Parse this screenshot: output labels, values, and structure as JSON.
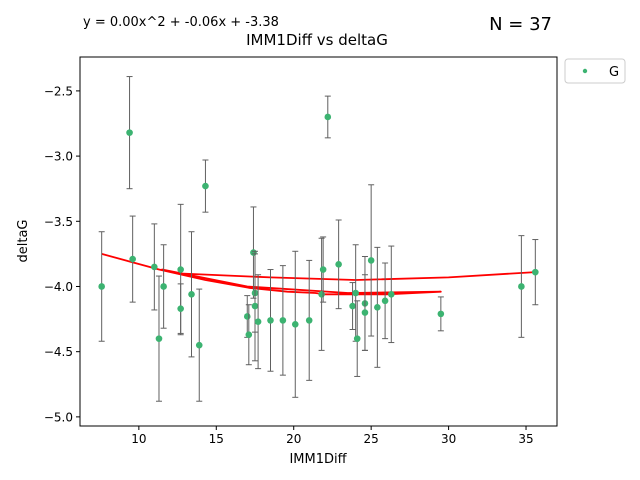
{
  "figure": {
    "equation": "y = 0.00x^2 + -0.06x + -3.38",
    "n_label": "N = 37"
  },
  "chart_data": {
    "type": "scatter",
    "title": "IMM1Diff vs deltaG",
    "xlabel": "IMM1Diff",
    "ylabel": "deltaG",
    "xlim": [
      6.2,
      37.0
    ],
    "ylim": [
      -5.07,
      -2.24
    ],
    "x_ticks": [
      10,
      15,
      20,
      25,
      30,
      35
    ],
    "y_ticks": [
      -5.0,
      -4.5,
      -4.0,
      -3.5,
      -3.0,
      -2.5
    ],
    "x_tick_labels": [
      "10",
      "15",
      "20",
      "25",
      "30",
      "35"
    ],
    "y_tick_labels": [
      "−5.0",
      "−4.5",
      "−4.0",
      "−3.5",
      "−3.0",
      "−2.5"
    ],
    "grid": false,
    "legend": {
      "position": "outside-top-right",
      "entries": [
        "G"
      ]
    },
    "colors": {
      "points": "#3cb371",
      "fit": "#ff0000",
      "errorbar": "#606060"
    },
    "fit": {
      "degree": 2,
      "coefficients": [
        0.0,
        -0.06,
        -3.38
      ]
    },
    "fit_curve": {
      "name": "fit",
      "x": [
        7.6,
        11.3,
        14.3,
        17.1,
        19.6,
        21.4,
        22.0,
        23.5,
        24.4,
        25.1,
        26.0,
        29.5,
        23.5,
        17.0,
        11.5,
        12.5,
        18.5,
        24.0,
        30.0,
        35.6
      ],
      "y": [
        -3.75,
        -3.87,
        -3.95,
        -4.01,
        -4.04,
        -4.05,
        -4.06,
        -4.06,
        -4.06,
        -4.06,
        -4.06,
        -4.04,
        -4.05,
        -4.0,
        -3.87,
        -3.9,
        -3.93,
        -3.95,
        -3.93,
        -3.89
      ]
    },
    "series": [
      {
        "name": "G",
        "points": [
          {
            "x": 7.6,
            "y": -4.0,
            "err": 0.42
          },
          {
            "x": 9.4,
            "y": -2.82,
            "err": 0.43
          },
          {
            "x": 9.6,
            "y": -3.79,
            "err": 0.33
          },
          {
            "x": 11.0,
            "y": -3.85,
            "err": 0.33
          },
          {
            "x": 11.3,
            "y": -4.4,
            "err": 0.48
          },
          {
            "x": 11.6,
            "y": -4.0,
            "err": 0.32
          },
          {
            "x": 12.7,
            "y": -3.87,
            "err": 0.5
          },
          {
            "x": 12.7,
            "y": -4.17,
            "err": 0.19
          },
          {
            "x": 13.4,
            "y": -4.06,
            "err": 0.48
          },
          {
            "x": 13.9,
            "y": -4.45,
            "err": 0.43
          },
          {
            "x": 14.3,
            "y": -3.23,
            "err": 0.2
          },
          {
            "x": 17.0,
            "y": -4.23,
            "err": 0.16
          },
          {
            "x": 17.1,
            "y": -4.37,
            "err": 0.23
          },
          {
            "x": 17.4,
            "y": -3.74,
            "err": 0.35
          },
          {
            "x": 17.5,
            "y": -4.05,
            "err": 0.3
          },
          {
            "x": 17.5,
            "y": -4.15,
            "err": 0.42
          },
          {
            "x": 17.7,
            "y": -4.27,
            "err": 0.36
          },
          {
            "x": 18.5,
            "y": -4.26,
            "err": 0.39
          },
          {
            "x": 19.3,
            "y": -4.26,
            "err": 0.42
          },
          {
            "x": 20.1,
            "y": -4.29,
            "err": 0.56
          },
          {
            "x": 21.0,
            "y": -4.26,
            "err": 0.46
          },
          {
            "x": 21.8,
            "y": -4.06,
            "err": 0.43
          },
          {
            "x": 21.9,
            "y": -3.87,
            "err": 0.25
          },
          {
            "x": 22.2,
            "y": -2.7,
            "err": 0.16
          },
          {
            "x": 22.9,
            "y": -3.83,
            "err": 0.34
          },
          {
            "x": 23.8,
            "y": -4.15,
            "err": 0.18
          },
          {
            "x": 24.0,
            "y": -4.05,
            "err": 0.37
          },
          {
            "x": 24.1,
            "y": -4.4,
            "err": 0.29
          },
          {
            "x": 24.6,
            "y": -4.13,
            "err": 0.36
          },
          {
            "x": 24.6,
            "y": -4.2,
            "err": 0.29
          },
          {
            "x": 25.0,
            "y": -3.8,
            "err": 0.58
          },
          {
            "x": 25.4,
            "y": -4.16,
            "err": 0.46
          },
          {
            "x": 25.9,
            "y": -4.11,
            "err": 0.29
          },
          {
            "x": 26.3,
            "y": -4.06,
            "err": 0.37
          },
          {
            "x": 29.5,
            "y": -4.21,
            "err": 0.13
          },
          {
            "x": 34.7,
            "y": -4.0,
            "err": 0.39
          },
          {
            "x": 35.6,
            "y": -3.89,
            "err": 0.25
          }
        ]
      }
    ]
  }
}
